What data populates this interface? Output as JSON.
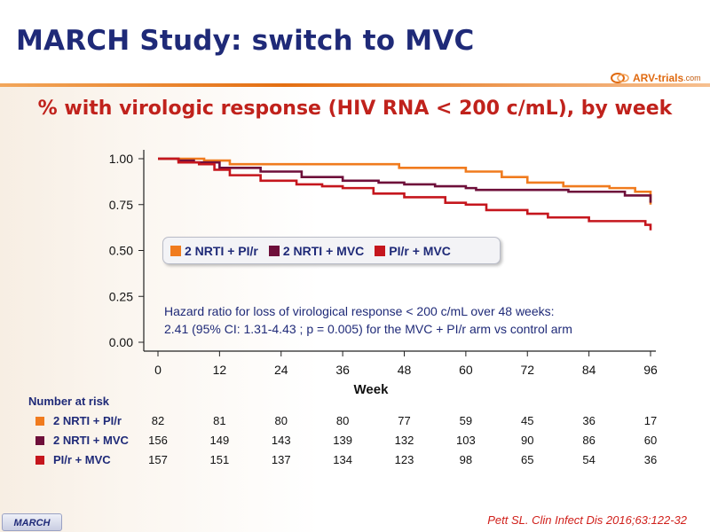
{
  "slide": {
    "title": "MARCH Study: switch to MVC",
    "tab": "MARCH",
    "citation": "Pett SL. Clin Infect Dis 2016;63:122-32",
    "logo": {
      "brand": "ARV-trials",
      "domain": ".com"
    }
  },
  "chart_data": {
    "type": "line",
    "title": "% with virologic response (HIV RNA < 200 c/mL), by week",
    "xlabel": "Week",
    "ylabel": "",
    "xlim": [
      0,
      96
    ],
    "ylim": [
      0,
      1
    ],
    "x_ticks": [
      "0",
      "12",
      "24",
      "36",
      "48",
      "60",
      "72",
      "84",
      "96"
    ],
    "y_ticks": [
      "1.00",
      "0.75",
      "0.50",
      "0.25",
      "0.00"
    ],
    "legend_placement": "center",
    "series": [
      {
        "name": "2 NRTI + PI/r",
        "color": "#f07b1e",
        "x": [
          0,
          4,
          9,
          14,
          42,
          47,
          60,
          67,
          72,
          79,
          88,
          93,
          96
        ],
        "y": [
          1.0,
          1.0,
          0.99,
          0.97,
          0.97,
          0.95,
          0.93,
          0.9,
          0.87,
          0.85,
          0.84,
          0.82,
          0.75
        ]
      },
      {
        "name": "2 NRTI + MVC",
        "color": "#6e0f3a",
        "x": [
          0,
          4,
          7,
          12,
          20,
          28,
          36,
          43,
          48,
          54,
          60,
          62,
          72,
          80,
          88,
          91,
          96
        ],
        "y": [
          1.0,
          0.99,
          0.98,
          0.95,
          0.93,
          0.9,
          0.88,
          0.87,
          0.86,
          0.85,
          0.84,
          0.83,
          0.83,
          0.82,
          0.82,
          0.8,
          0.76
        ]
      },
      {
        "name": "PI/r + MVC",
        "color": "#c5161d",
        "x": [
          0,
          4,
          8,
          11,
          14,
          20,
          27,
          32,
          36,
          42,
          48,
          56,
          60,
          64,
          72,
          76,
          84,
          95,
          96
        ],
        "y": [
          1.0,
          0.98,
          0.97,
          0.94,
          0.91,
          0.88,
          0.86,
          0.85,
          0.84,
          0.81,
          0.79,
          0.76,
          0.75,
          0.72,
          0.7,
          0.68,
          0.66,
          0.64,
          0.61
        ]
      }
    ],
    "annotation": {
      "line1": "Hazard ratio for loss of virological response < 200 c/mL over 48 weeks:",
      "line2": "2.41 (95% CI: 1.31-4.43 ; p = 0.005) for the MVC + PI/r arm vs control arm"
    },
    "risk_table": {
      "title": "Number at risk",
      "rows": [
        {
          "label": "2 NRTI + PI/r",
          "color": "#f07b1e",
          "values": [
            "82",
            "81",
            "80",
            "80",
            "77",
            "59",
            "45",
            "36",
            "17"
          ]
        },
        {
          "label": "2 NRTI + MVC",
          "color": "#6e0f3a",
          "values": [
            "156",
            "149",
            "143",
            "139",
            "132",
            "103",
            "90",
            "86",
            "60"
          ]
        },
        {
          "label": "PI/r + MVC",
          "color": "#c5161d",
          "values": [
            "157",
            "151",
            "137",
            "134",
            "123",
            "98",
            "65",
            "54",
            "36"
          ]
        }
      ]
    }
  }
}
